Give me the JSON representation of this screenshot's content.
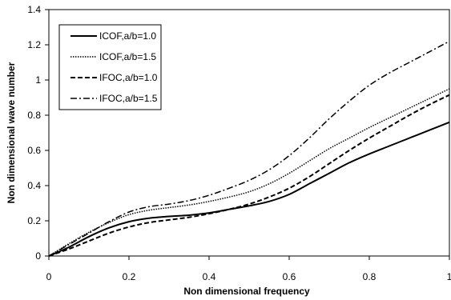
{
  "chart_data": {
    "type": "line",
    "xlabel": "Non dimensional frequency",
    "ylabel": "Non dimensional wave number",
    "xlim": [
      0,
      1
    ],
    "ylim": [
      0,
      1.4
    ],
    "x_ticks": [
      "0",
      "0.2",
      "0.4",
      "0.6",
      "0.8",
      "1"
    ],
    "y_ticks": [
      "0",
      "0.2",
      "0.4",
      "0.6",
      "0.8",
      "1",
      "1.2",
      "1.4"
    ],
    "grid": false,
    "legend_position": "top-left",
    "series": [
      {
        "name": "ICOF,a/b=1.0",
        "style": "solid",
        "x": [
          0,
          0.05,
          0.1,
          0.15,
          0.2,
          0.25,
          0.3,
          0.35,
          0.4,
          0.45,
          0.5,
          0.55,
          0.6,
          0.65,
          0.7,
          0.75,
          0.8,
          0.85,
          0.9,
          0.95,
          1.0
        ],
        "y": [
          0,
          0.05,
          0.11,
          0.16,
          0.195,
          0.215,
          0.225,
          0.232,
          0.245,
          0.265,
          0.285,
          0.31,
          0.35,
          0.41,
          0.47,
          0.53,
          0.58,
          0.625,
          0.67,
          0.715,
          0.76
        ]
      },
      {
        "name": "ICOF,a/b=1.5",
        "style": "dotted",
        "x": [
          0,
          0.05,
          0.1,
          0.15,
          0.2,
          0.25,
          0.3,
          0.35,
          0.4,
          0.45,
          0.5,
          0.55,
          0.6,
          0.65,
          0.7,
          0.75,
          0.8,
          0.85,
          0.9,
          0.95,
          1.0
        ],
        "y": [
          0,
          0.07,
          0.135,
          0.19,
          0.235,
          0.26,
          0.275,
          0.29,
          0.31,
          0.335,
          0.365,
          0.41,
          0.47,
          0.54,
          0.61,
          0.67,
          0.73,
          0.785,
          0.84,
          0.895,
          0.95
        ]
      },
      {
        "name": "IFOC,a/b=1.0",
        "style": "dashed",
        "x": [
          0,
          0.05,
          0.1,
          0.15,
          0.2,
          0.25,
          0.3,
          0.35,
          0.4,
          0.45,
          0.5,
          0.55,
          0.6,
          0.65,
          0.7,
          0.75,
          0.8,
          0.85,
          0.9,
          0.95,
          1.0
        ],
        "y": [
          0,
          0.04,
          0.085,
          0.13,
          0.165,
          0.19,
          0.205,
          0.22,
          0.24,
          0.265,
          0.295,
          0.335,
          0.385,
          0.45,
          0.525,
          0.6,
          0.67,
          0.735,
          0.8,
          0.86,
          0.915
        ]
      },
      {
        "name": "IFOC,a/b=1.5",
        "style": "dashdot",
        "x": [
          0,
          0.05,
          0.1,
          0.15,
          0.2,
          0.25,
          0.3,
          0.35,
          0.4,
          0.45,
          0.5,
          0.55,
          0.6,
          0.65,
          0.7,
          0.75,
          0.8,
          0.85,
          0.9,
          0.95,
          1.0
        ],
        "y": [
          0,
          0.065,
          0.13,
          0.195,
          0.25,
          0.28,
          0.295,
          0.315,
          0.345,
          0.385,
          0.43,
          0.49,
          0.57,
          0.67,
          0.78,
          0.88,
          0.97,
          1.04,
          1.1,
          1.16,
          1.22
        ]
      }
    ]
  }
}
